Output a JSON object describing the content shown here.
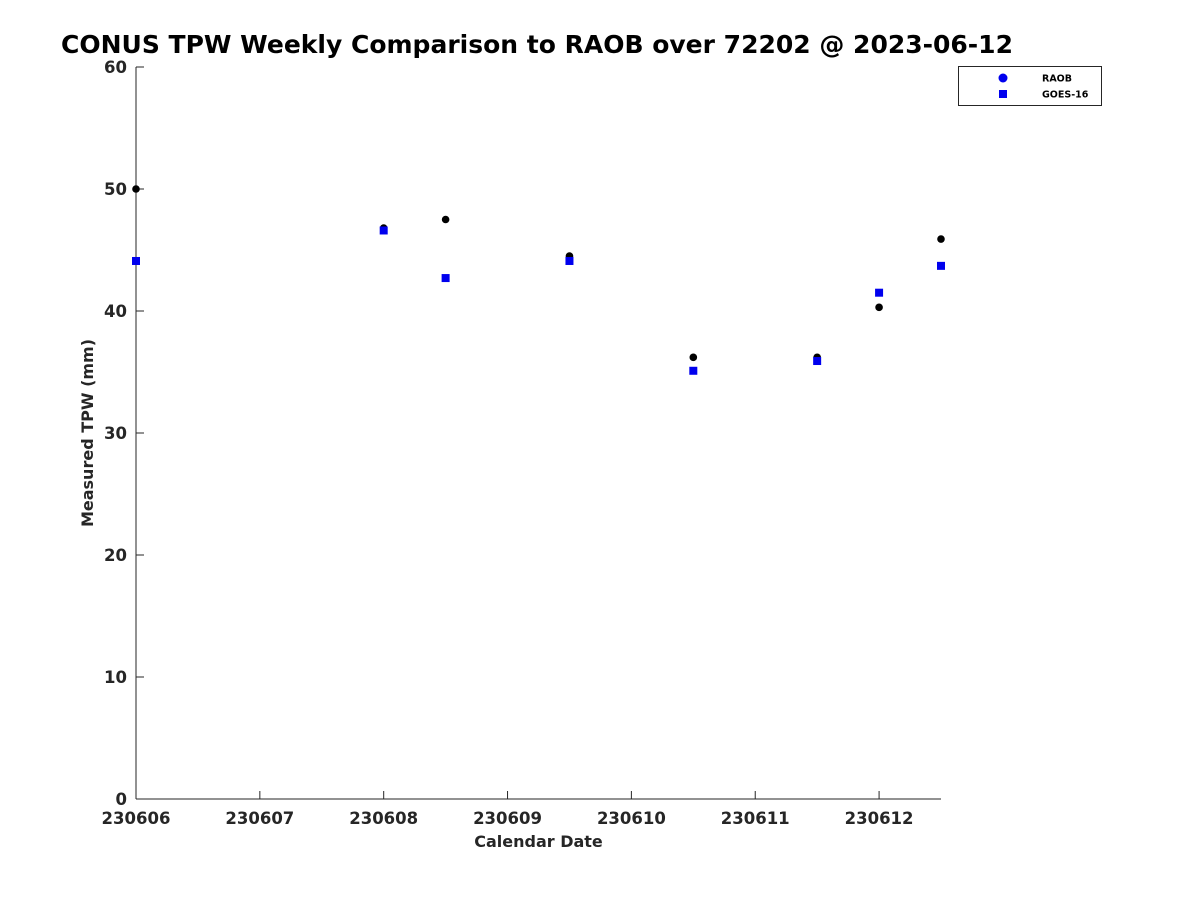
{
  "title": "CONUS TPW Weekly Comparison to RAOB over 72202 @ 2023-06-12",
  "chart_data": {
    "type": "scatter",
    "title": "CONUS TPW Weekly Comparison to RAOB over 72202 @ 2023-06-12",
    "xlabel": "Calendar Date",
    "ylabel": "Measured TPW (mm)",
    "x_tick_labels": [
      "230606",
      "230607",
      "230608",
      "230609",
      "230610",
      "230611",
      "230612"
    ],
    "x_range_days": [
      0,
      6.5
    ],
    "ylim": [
      0,
      60
    ],
    "y_ticks": [
      0,
      10,
      20,
      30,
      40,
      50,
      60
    ],
    "grid": false,
    "legend_position": "top-right",
    "legend": [
      {
        "name": "RAOB",
        "marker": "circle",
        "color": "#0000ee"
      },
      {
        "name": "GOES-16",
        "marker": "square",
        "color": "#0000ee"
      }
    ],
    "series": [
      {
        "name": "RAOB",
        "marker": "circle",
        "color": "#000000",
        "points": [
          {
            "x": "230606 00Z",
            "day": 0.0,
            "y": 50.0
          },
          {
            "x": "230608 00Z",
            "day": 2.0,
            "y": 46.8
          },
          {
            "x": "230608 12Z",
            "day": 2.5,
            "y": 47.5
          },
          {
            "x": "230609 12Z",
            "day": 3.5,
            "y": 44.5
          },
          {
            "x": "230610 12Z",
            "day": 4.5,
            "y": 36.2
          },
          {
            "x": "230611 12Z",
            "day": 5.5,
            "y": 36.2
          },
          {
            "x": "230612 00Z",
            "day": 6.0,
            "y": 40.3
          },
          {
            "x": "230612 12Z",
            "day": 6.5,
            "y": 45.9
          }
        ]
      },
      {
        "name": "GOES-16",
        "marker": "square",
        "color": "#0000ee",
        "points": [
          {
            "x": "230606 00Z",
            "day": 0.0,
            "y": 44.1
          },
          {
            "x": "230608 00Z",
            "day": 2.0,
            "y": 46.6
          },
          {
            "x": "230608 12Z",
            "day": 2.5,
            "y": 42.7
          },
          {
            "x": "230609 12Z",
            "day": 3.5,
            "y": 44.1
          },
          {
            "x": "230610 12Z",
            "day": 4.5,
            "y": 35.1
          },
          {
            "x": "230611 12Z",
            "day": 5.5,
            "y": 35.9
          },
          {
            "x": "230612 00Z",
            "day": 6.0,
            "y": 41.5
          },
          {
            "x": "230612 12Z",
            "day": 6.5,
            "y": 43.7
          }
        ]
      }
    ]
  }
}
